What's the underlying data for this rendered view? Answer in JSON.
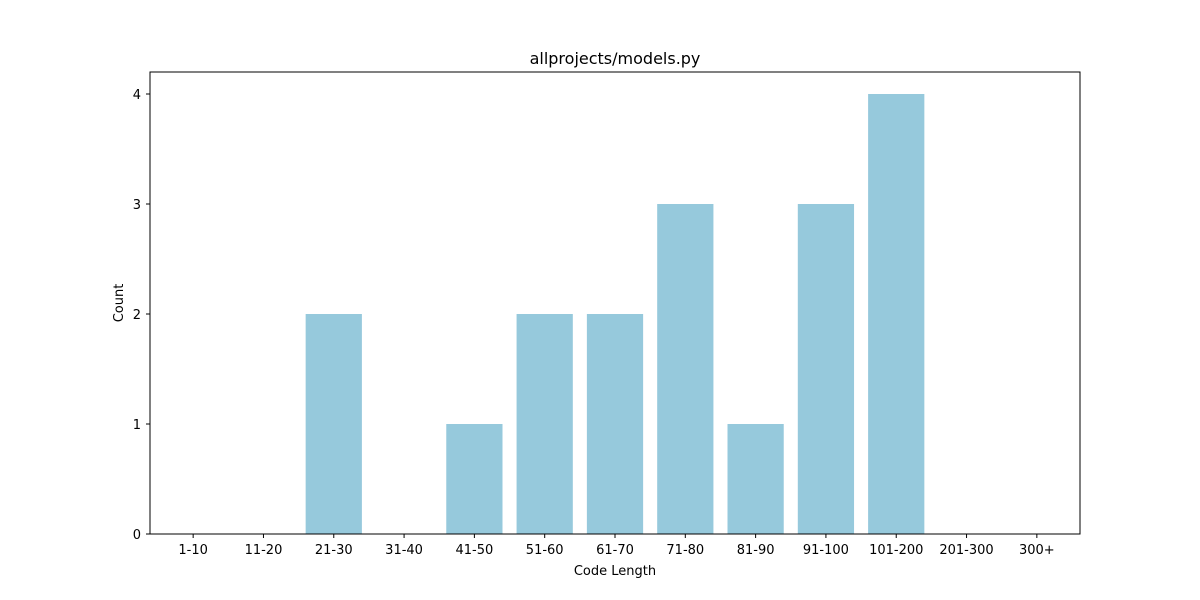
{
  "chart_data": {
    "type": "bar",
    "title": "allprojects/models.py",
    "xlabel": "Code Length",
    "ylabel": "Count",
    "categories": [
      "1-10",
      "11-20",
      "21-30",
      "31-40",
      "41-50",
      "51-60",
      "61-70",
      "71-80",
      "81-90",
      "91-100",
      "101-200",
      "201-300",
      "300+"
    ],
    "values": [
      0,
      0,
      2,
      0,
      1,
      2,
      2,
      3,
      1,
      3,
      4,
      0,
      0
    ],
    "ylim": [
      0,
      4.2
    ],
    "yticks": [
      0,
      1,
      2,
      3,
      4
    ],
    "bar_color": "#96c9dc",
    "grid": false,
    "legend": "none"
  }
}
